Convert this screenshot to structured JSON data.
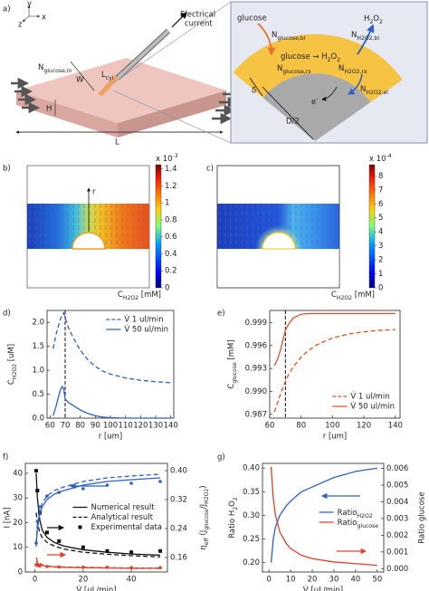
{
  "panels": {
    "a": {
      "label": "a)",
      "texts": [
        "y",
        "x",
        "z",
        "Electrical",
        "current",
        [
          {
            "text": "N"
          },
          {
            "text": "glucose,in",
            "sub": true
          }
        ],
        "W",
        [
          {
            "text": "L"
          },
          {
            "text": "cyl",
            "sub": true
          }
        ],
        "H",
        "L",
        "glucose",
        [
          {
            "text": "N"
          },
          {
            "text": "glucose,bl",
            "sub": true
          }
        ],
        [
          {
            "text": "H"
          },
          {
            "text": "2",
            "sub": true
          },
          {
            "text": "O"
          },
          {
            "text": "2",
            "sub": true
          }
        ],
        [
          {
            "text": "N"
          },
          {
            "text": "H2O2,bl",
            "sub": true
          }
        ],
        [
          {
            "text": "glucose → H"
          },
          {
            "text": "2",
            "sub": true
          },
          {
            "text": "O"
          },
          {
            "text": "2",
            "sub": true
          }
        ],
        [
          {
            "text": "N"
          },
          {
            "text": "glucose,rx",
            "sub": true
          }
        ],
        [
          {
            "text": "N"
          },
          {
            "text": "H2O2,rx",
            "sub": true
          }
        ],
        "δ",
        [
          {
            "text": "N"
          },
          {
            "text": "H2O2,el",
            "sub": true
          }
        ],
        [
          {
            "text": "e"
          },
          {
            "text": "-",
            "sup": true
          }
        ],
        "D/2"
      ]
    },
    "b": {
      "label": "b)",
      "axis_label": "r",
      "colorbar": {
        "lim": [
          0,
          1.45
        ],
        "ticks": [
          0,
          0.2,
          0.4,
          0.6,
          0.8,
          1,
          1.2,
          1.4
        ],
        "exponent": [
          {
            "text": "x 10"
          },
          {
            "text": "-3",
            "sup": true
          }
        ],
        "label": [
          {
            "text": "C"
          },
          {
            "text": "H2O2",
            "sub": true
          },
          {
            "text": " [mM]"
          }
        ]
      }
    },
    "c": {
      "label": "c)",
      "colorbar": {
        "lim": [
          0,
          8.8
        ],
        "ticks": [
          0,
          1,
          2,
          3,
          4,
          5,
          6,
          7,
          8
        ],
        "exponent": [
          {
            "text": "x 10"
          },
          {
            "text": "-4",
            "sup": true
          }
        ],
        "label": [
          {
            "text": "C"
          },
          {
            "text": "H2O2",
            "sub": true
          },
          {
            "text": " [mM]"
          }
        ]
      }
    }
  },
  "chart_data": [
    {
      "type": "line",
      "label": "d)",
      "xlabel": "r [um]",
      "ylabel": [
        {
          "text": "C"
        },
        {
          "text": "H2O2",
          "sub": true
        },
        {
          "text": " [uM]"
        }
      ],
      "x": [
        62,
        64,
        66,
        67,
        68,
        69,
        70,
        72,
        75,
        80,
        85,
        90,
        95,
        100,
        110,
        120,
        130,
        140
      ],
      "series": [
        {
          "name": "V̇  1 ul/min",
          "color": "#2f5fc4",
          "style": "dashed",
          "values": [
            1.45,
            1.75,
            1.98,
            2.08,
            2.15,
            2.2,
            2.1,
            1.9,
            1.7,
            1.42,
            1.22,
            1.08,
            0.98,
            0.92,
            0.84,
            0.79,
            0.76,
            0.74
          ]
        },
        {
          "name": "V̇  50 ul/min",
          "color": "#2f5fc4",
          "style": "solid",
          "values": [
            0.05,
            0.25,
            0.5,
            0.6,
            0.66,
            0.62,
            0.4,
            0.33,
            0.27,
            0.17,
            0.1,
            0.05,
            0.02,
            0.01,
            0,
            0,
            0,
            0
          ]
        }
      ],
      "xlim": [
        58,
        142
      ],
      "xticks": [
        60,
        70,
        80,
        90,
        100,
        110,
        120,
        130,
        140
      ],
      "ylim": [
        0,
        2.25
      ],
      "yticks": [
        {
          "value": 0,
          "label": "0.0"
        },
        0.5,
        {
          "value": 1,
          "label": "1.0"
        },
        1.5,
        {
          "value": 2,
          "label": "2.0"
        }
      ],
      "vline": 70,
      "legend": "upper right"
    },
    {
      "type": "line",
      "label": "e)",
      "xlabel": "r [um]",
      "ylabel": [
        {
          "text": "C"
        },
        {
          "text": "glucose",
          "sub": true
        },
        {
          "text": " [mM]"
        }
      ],
      "x": [
        63,
        65,
        67,
        69,
        70,
        72,
        75,
        80,
        85,
        90,
        100,
        110,
        120,
        130,
        140
      ],
      "series": [
        {
          "name": "V̇  1 ul/min",
          "color": "#e0502a",
          "style": "dashed",
          "values": [
            0.9873,
            0.9885,
            0.9897,
            0.9908,
            0.9913,
            0.9922,
            0.9932,
            0.9945,
            0.9954,
            0.9961,
            0.997,
            0.9975,
            0.9978,
            0.998,
            0.9981
          ]
        },
        {
          "name": "V̇  50 ul/min",
          "color": "#e0502a",
          "style": "solid",
          "values": [
            0.9934,
            0.9942,
            0.9955,
            0.9972,
            0.998,
            0.9988,
            0.9996,
            1.0001,
            1.0002,
            1.0002,
            1.0002,
            1.0002,
            1.0002,
            1.0002,
            1.0002
          ]
        }
      ],
      "xlim": [
        60,
        143
      ],
      "xticks": [
        60,
        80,
        100,
        120,
        140
      ],
      "ylim": [
        0.9865,
        1.0006
      ],
      "yticks": [
        0.987,
        {
          "value": 0.99,
          "label": "0.990"
        },
        0.993,
        0.996,
        0.999
      ],
      "vline": 70,
      "legend": "lower right"
    },
    {
      "type": "line",
      "label": "f)",
      "xlabel": "V̇  [uL/min]",
      "ylabel": "I [nA]",
      "y2label": [
        {
          "text": "η"
        },
        {
          "text": "eff",
          "sub": true
        },
        {
          "text": " (J"
        },
        {
          "text": "glucose",
          "sub": true
        },
        {
          "text": "/J"
        },
        {
          "text": "H2O2",
          "sub": true
        },
        {
          "text": ")"
        }
      ],
      "series": [
        {
          "name": "Numerical result",
          "color": "#111111",
          "style": "solid",
          "x": [
            0.5,
            1,
            2,
            3,
            5,
            8,
            12,
            20,
            30,
            40,
            52
          ],
          "values": [
            40,
            30,
            21,
            17,
            14,
            12,
            10.5,
            9,
            8,
            7.3,
            6.8
          ]
        },
        {
          "name": "Analytical result",
          "color": "#111111",
          "style": "dashed",
          "x": [
            0.5,
            1,
            2,
            3,
            5,
            8,
            12,
            20,
            30,
            40,
            52
          ],
          "values": [
            24,
            20,
            16,
            14,
            12,
            10.5,
            9.3,
            8,
            7.2,
            6.6,
            6.1
          ]
        },
        {
          "name": "Experimental data",
          "color": "#111111",
          "line": false,
          "marker": "square",
          "x": [
            0.5,
            1,
            2,
            5,
            10,
            20,
            30,
            40,
            52
          ],
          "values": [
            41,
            33,
            24,
            16,
            12.5,
            10,
            8.5,
            8,
            8.5
          ]
        },
        {
          "color": "#2f5fc4",
          "style": "solid",
          "axis": "y2",
          "x": [
            0.5,
            1,
            2,
            3,
            5,
            8,
            12,
            20,
            30,
            40,
            52
          ],
          "values": [
            0.19,
            0.24,
            0.28,
            0.3,
            0.32,
            0.335,
            0.345,
            0.36,
            0.37,
            0.375,
            0.38
          ]
        },
        {
          "color": "#2f5fc4",
          "style": "dashed",
          "axis": "y2",
          "x": [
            0.5,
            1,
            2,
            3,
            5,
            8,
            12,
            20,
            30,
            40,
            52
          ],
          "values": [
            0.2,
            0.25,
            0.29,
            0.31,
            0.33,
            0.345,
            0.355,
            0.37,
            0.38,
            0.385,
            0.39
          ]
        },
        {
          "color": "#2f5fc4",
          "line": false,
          "marker": "circle",
          "axis": "y2",
          "x": [
            0.5,
            1,
            2,
            5,
            10,
            20,
            30,
            40,
            52
          ],
          "values": [
            0.2,
            0.26,
            0.3,
            0.33,
            0.34,
            0.35,
            0.36,
            0.365,
            0.37
          ]
        },
        {
          "color": "#e0402a",
          "style": "solid",
          "axis": "y2",
          "x": [
            0.5,
            1,
            2,
            3,
            5,
            8,
            12,
            20,
            30,
            40,
            52
          ],
          "values": [
            0.15,
            0.145,
            0.14,
            0.138,
            0.136,
            0.134,
            0.133,
            0.132,
            0.131,
            0.13,
            0.13
          ]
        },
        {
          "color": "#e0402a",
          "style": "dashed",
          "axis": "y2",
          "x": [
            0.5,
            1,
            2,
            3,
            5,
            8,
            12,
            20,
            30,
            40,
            52
          ],
          "values": [
            0.16,
            0.15,
            0.145,
            0.14,
            0.137,
            0.135,
            0.134,
            0.133,
            0.132,
            0.131,
            0.131
          ]
        },
        {
          "color": "#e0402a",
          "line": false,
          "marker": "circle",
          "axis": "y2",
          "x": [
            0.5,
            1,
            2,
            5,
            10,
            20,
            30,
            40,
            52
          ],
          "values": [
            0.14,
            0.138,
            0.137,
            0.135,
            0.134,
            0.133,
            0.133,
            0.132,
            0.132
          ]
        }
      ],
      "xlim": [
        -4,
        55
      ],
      "xticks": [
        0,
        20,
        40
      ],
      "ylim": [
        0,
        44
      ],
      "yticks": [
        0,
        10,
        20,
        30,
        40
      ],
      "y2lim": [
        0.12,
        0.42
      ],
      "y2ticks": [
        0.16,
        0.24,
        0.32,
        {
          "value": 0.4,
          "label": "0.40"
        }
      ],
      "legend": "center right"
    },
    {
      "type": "line",
      "label": "g)",
      "xlabel": "V̇  [uL/min]",
      "ylabel": [
        {
          "text": "Ratio H"
        },
        {
          "text": "2",
          "sub": true
        },
        {
          "text": "O"
        },
        {
          "text": "2",
          "sub": true
        }
      ],
      "y2label": "Ratio glucose",
      "series": [
        {
          "name": [
            {
              "text": "Ratio"
            },
            {
              "text": "H2O2",
              "sub": true
            }
          ],
          "color": "#2f5fc4",
          "style": "solid",
          "x": [
            1,
            2,
            3,
            5,
            8,
            10,
            15,
            20,
            30,
            40,
            50
          ],
          "values": [
            0.2,
            0.25,
            0.275,
            0.3,
            0.32,
            0.33,
            0.35,
            0.36,
            0.38,
            0.393,
            0.4
          ]
        },
        {
          "name": [
            {
              "text": "Ratio"
            },
            {
              "text": "glucose",
              "sub": true
            }
          ],
          "color": "#e0402a",
          "style": "solid",
          "axis": "y2",
          "x": [
            1,
            2,
            3,
            5,
            8,
            10,
            15,
            20,
            30,
            40,
            50
          ],
          "values": [
            0.0061,
            0.0042,
            0.0032,
            0.0022,
            0.0015,
            0.0012,
            0.0008,
            0.0006,
            0.0004,
            0.0003,
            0.0002
          ]
        }
      ],
      "xlim": [
        -3,
        53
      ],
      "xticks": [
        0,
        10,
        20,
        30,
        40,
        50
      ],
      "ylim": [
        0.18,
        0.41
      ],
      "yticks": [
        {
          "value": 0.2,
          "label": "0.20"
        },
        0.25,
        {
          "value": 0.3,
          "label": "0.30"
        },
        0.35,
        {
          "value": 0.4,
          "label": "0.40"
        }
      ],
      "y2lim": [
        -0.0002,
        0.0063
      ],
      "y2ticks": [
        {
          "value": 0,
          "label": "0.000"
        },
        0.001,
        0.002,
        0.003,
        0.004,
        0.005,
        0.006
      ],
      "legend": "center right"
    }
  ]
}
